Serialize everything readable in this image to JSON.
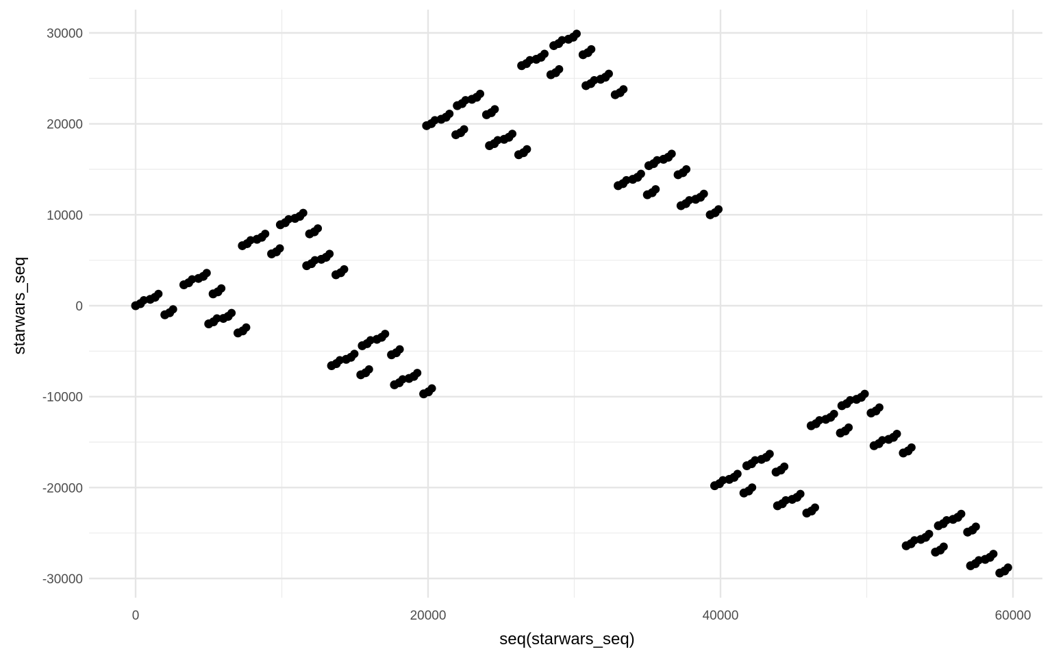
{
  "chart_data": {
    "type": "scatter",
    "title": "",
    "xlabel": "seq(starwars_seq)",
    "ylabel": "starwars_seq",
    "xlim": [
      -3000,
      62000
    ],
    "ylim": [
      -32000,
      32000
    ],
    "x_ticks": [
      0,
      20000,
      40000,
      60000
    ],
    "y_ticks": [
      -30000,
      -20000,
      -10000,
      0,
      10000,
      20000,
      30000
    ],
    "x_tick_labels": [
      "0",
      "20000",
      "40000",
      "60000"
    ],
    "y_tick_labels": [
      "-30000",
      "-20000",
      "-10000",
      "0",
      "10000",
      "20000",
      "30000"
    ],
    "grid": true,
    "legend": "none",
    "point_color": "#000000",
    "series": [
      {
        "values_note": "",
        "points": [
          [
            0,
            0
          ],
          [
            1000,
            700
          ],
          [
            2000,
            -1000
          ],
          [
            3300,
            2300
          ],
          [
            4300,
            3000
          ],
          [
            5300,
            1300
          ],
          [
            5000,
            -2000
          ],
          [
            6000,
            -1400
          ],
          [
            7000,
            -3000
          ],
          [
            7300,
            6600
          ],
          [
            8300,
            7300
          ],
          [
            9300,
            5700
          ],
          [
            9900,
            8900
          ],
          [
            10900,
            9600
          ],
          [
            11900,
            7900
          ],
          [
            11700,
            4400
          ],
          [
            12700,
            5100
          ],
          [
            13700,
            3400
          ],
          [
            13400,
            -6600
          ],
          [
            14400,
            -5900
          ],
          [
            15400,
            -7600
          ],
          [
            15500,
            -4400
          ],
          [
            16500,
            -3700
          ],
          [
            17500,
            -5400
          ],
          [
            17700,
            -8700
          ],
          [
            18700,
            -8000
          ],
          [
            19700,
            -9700
          ],
          [
            19900,
            19800
          ],
          [
            20900,
            20500
          ],
          [
            21900,
            18800
          ],
          [
            22000,
            22000
          ],
          [
            23000,
            22700
          ],
          [
            24000,
            21000
          ],
          [
            24200,
            17600
          ],
          [
            25200,
            18300
          ],
          [
            26200,
            16600
          ],
          [
            26400,
            26400
          ],
          [
            27400,
            27100
          ],
          [
            28400,
            25400
          ],
          [
            28600,
            28600
          ],
          [
            29600,
            29300
          ],
          [
            30600,
            27600
          ],
          [
            30800,
            24200
          ],
          [
            31800,
            24900
          ],
          [
            32800,
            23200
          ],
          [
            33000,
            13200
          ],
          [
            34000,
            13900
          ],
          [
            35000,
            12200
          ],
          [
            35100,
            15400
          ],
          [
            36100,
            16100
          ],
          [
            37100,
            14400
          ],
          [
            37300,
            11000
          ],
          [
            38300,
            11700
          ],
          [
            39300,
            10000
          ],
          [
            39600,
            -19800
          ],
          [
            40600,
            -19100
          ],
          [
            41600,
            -20600
          ],
          [
            41800,
            -17600
          ],
          [
            42800,
            -16900
          ],
          [
            43800,
            -18300
          ],
          [
            43900,
            -22000
          ],
          [
            44900,
            -21300
          ],
          [
            45900,
            -22800
          ],
          [
            46200,
            -13200
          ],
          [
            47200,
            -12500
          ],
          [
            48200,
            -14000
          ],
          [
            48300,
            -11000
          ],
          [
            49300,
            -10300
          ],
          [
            50300,
            -11800
          ],
          [
            50500,
            -15400
          ],
          [
            51500,
            -14700
          ],
          [
            52500,
            -16200
          ],
          [
            52700,
            -26400
          ],
          [
            53700,
            -25700
          ],
          [
            54700,
            -27100
          ],
          [
            54900,
            -24200
          ],
          [
            55900,
            -23500
          ],
          [
            56900,
            -24900
          ],
          [
            57100,
            -28600
          ],
          [
            58100,
            -27900
          ],
          [
            59100,
            -29400
          ]
        ]
      }
    ]
  }
}
